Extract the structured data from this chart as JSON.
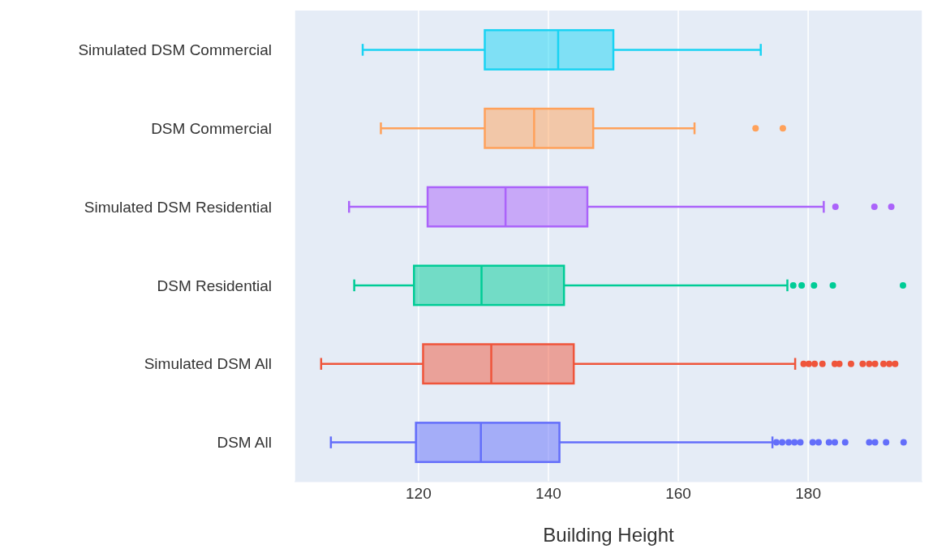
{
  "chart_data": {
    "type": "box",
    "orientation": "horizontal",
    "xlabel": "Building Height",
    "categories": [
      "Simulated DSM Commercial",
      "DSM Commercial",
      "Simulated DSM Residential",
      "DSM Residential",
      "Simulated DSM All",
      "DSM All"
    ],
    "colors": [
      "#19d3f3",
      "#ffa15a",
      "#ab63fa",
      "#00cc96",
      "#ef553b",
      "#636efa"
    ],
    "boxes": [
      {
        "low": 111.4,
        "q1": 130.2,
        "median": 141.5,
        "q3": 150.0,
        "high": 172.7
      },
      {
        "low": 114.2,
        "q1": 130.2,
        "median": 137.8,
        "q3": 146.9,
        "high": 162.5,
        "outliers": [
          171.9,
          176.1
        ]
      },
      {
        "low": 109.3,
        "q1": 121.4,
        "median": 133.4,
        "q3": 146.0,
        "high": 182.4,
        "outliers": [
          184.2,
          190.2,
          192.8
        ]
      },
      {
        "low": 110.1,
        "q1": 119.3,
        "median": 129.7,
        "q3": 142.4,
        "high": 176.8,
        "outliers": [
          177.7,
          179.0,
          180.9,
          183.8,
          194.6
        ]
      },
      {
        "low": 105.0,
        "q1": 120.7,
        "median": 131.2,
        "q3": 143.9,
        "high": 178.0,
        "outliers": [
          179.3,
          180.1,
          181.0,
          182.2,
          184.1,
          184.8,
          186.6,
          188.4,
          189.4,
          190.3,
          191.6,
          192.5,
          193.4
        ]
      },
      {
        "low": 106.5,
        "q1": 119.6,
        "median": 129.6,
        "q3": 141.7,
        "high": 174.5,
        "outliers": [
          175.1,
          176.0,
          177.0,
          177.9,
          178.8,
          180.7,
          181.6,
          183.2,
          184.1,
          185.7,
          189.4,
          190.3,
          192.0,
          194.7
        ]
      }
    ],
    "xlim": [
      100.9,
      197.6
    ],
    "xticks": [
      120,
      140,
      160,
      180
    ],
    "grid": "x"
  }
}
